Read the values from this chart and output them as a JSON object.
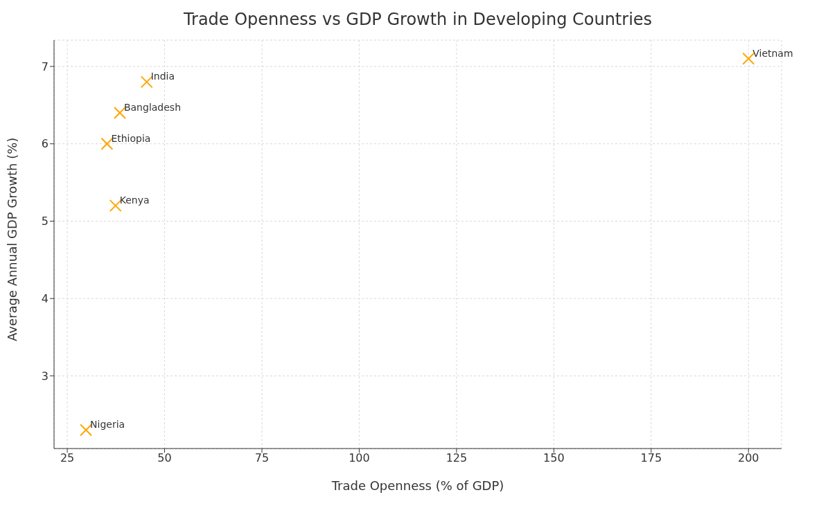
{
  "chart_data": {
    "type": "scatter",
    "title": "Trade Openness vs GDP Growth in Developing Countries",
    "xlabel": "Trade Openness (% of GDP)",
    "ylabel": "Average Annual GDP Growth (%)",
    "x": [
      200,
      45.4,
      38.5,
      35.2,
      37.4,
      29.8
    ],
    "series": [
      {
        "color": "#ffa500",
        "values": [
          7.1,
          6.8,
          6.4,
          6.0,
          5.2,
          2.3
        ]
      }
    ],
    "annotations": [
      {
        "text": "Vietnam",
        "x": 200,
        "y": 7.1
      },
      {
        "text": "India",
        "x": 45.4,
        "y": 6.8
      },
      {
        "text": "Bangladesh",
        "x": 38.5,
        "y": 6.4
      },
      {
        "text": "Ethiopia",
        "x": 35.2,
        "y": 6.0
      },
      {
        "text": "Kenya",
        "x": 37.4,
        "y": 5.2
      },
      {
        "text": "Nigeria",
        "x": 29.8,
        "y": 2.3
      }
    ],
    "xlim": [
      21.6,
      208.5
    ],
    "xticks": [
      25,
      50,
      75,
      100,
      125,
      150,
      175,
      200
    ],
    "ylim": [
      2.06,
      7.34
    ],
    "yticks": [
      3,
      4,
      5,
      6,
      7
    ],
    "grid": true,
    "marker": "cross",
    "legend": false
  }
}
